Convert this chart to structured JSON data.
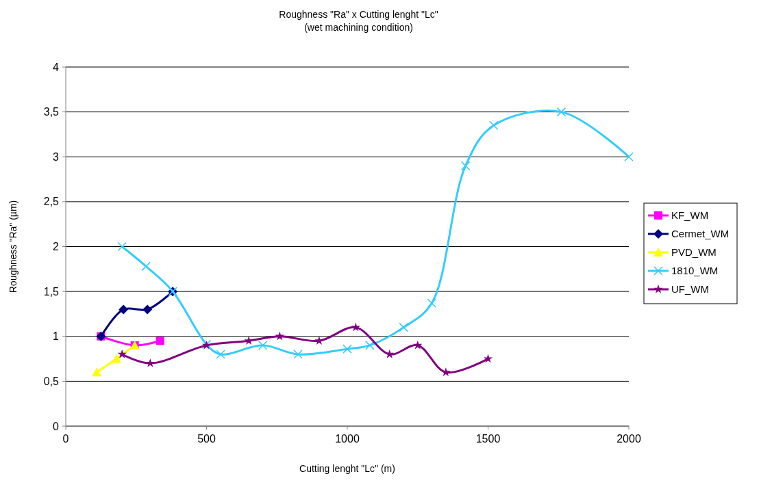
{
  "chart_data": {
    "type": "line",
    "title": "Roughness \"Ra\" x Cutting lenght \"Lc\"",
    "subtitle": "(wet machining condition)",
    "xlabel": "Cutting lenght \"Lc\" (m)",
    "ylabel": "Roughness \"Ra\" (µm)",
    "xlim": [
      0,
      2000
    ],
    "xticks": [
      0,
      500,
      1000,
      1500,
      2000
    ],
    "ylim": [
      0,
      4
    ],
    "yticks": [
      0,
      {
        "value": 0.5,
        "label": "0,5"
      },
      1,
      {
        "value": 1.5,
        "label": "1,5"
      },
      2,
      {
        "value": 2.5,
        "label": "2,5"
      },
      3,
      {
        "value": 3.5,
        "label": "3,5"
      },
      4
    ],
    "grid": "y",
    "legend": "right",
    "series": [
      {
        "name": "KF_WM",
        "color": "#ff00ff",
        "marker": "square",
        "x": [
          125,
          245,
          335
        ],
        "values": [
          1,
          0.9,
          0.95
        ]
      },
      {
        "name": "Cermet_WM",
        "color": "#000080",
        "marker": "diamond",
        "x": [
          125,
          205,
          290,
          380
        ],
        "values": [
          1,
          1.3,
          1.3,
          1.5
        ]
      },
      {
        "name": "PVD_WM",
        "color": "#ffff00",
        "marker": "triangle",
        "x": [
          110,
          180,
          245
        ],
        "values": [
          0.6,
          0.75,
          0.9
        ]
      },
      {
        "name": "1810_WM",
        "color": "#33ccff",
        "marker": "cross",
        "x": [
          200,
          285,
          380,
          500,
          550,
          700,
          825,
          1000,
          1080,
          1200,
          1300,
          1420,
          1520,
          1760,
          2000
        ],
        "values": [
          2,
          1.78,
          1.5,
          0.91,
          0.8,
          0.9,
          0.8,
          0.86,
          0.9,
          1.1,
          1.37,
          2.9,
          3.35,
          3.5,
          3
        ]
      },
      {
        "name": "UF_WM",
        "color": "#800080",
        "marker": "star",
        "x": [
          200,
          300,
          500,
          650,
          760,
          900,
          1030,
          1150,
          1250,
          1350,
          1500
        ],
        "values": [
          0.8,
          0.7,
          0.9,
          0.95,
          1,
          0.95,
          1.1,
          0.8,
          0.9,
          0.6,
          0.75
        ]
      }
    ]
  }
}
